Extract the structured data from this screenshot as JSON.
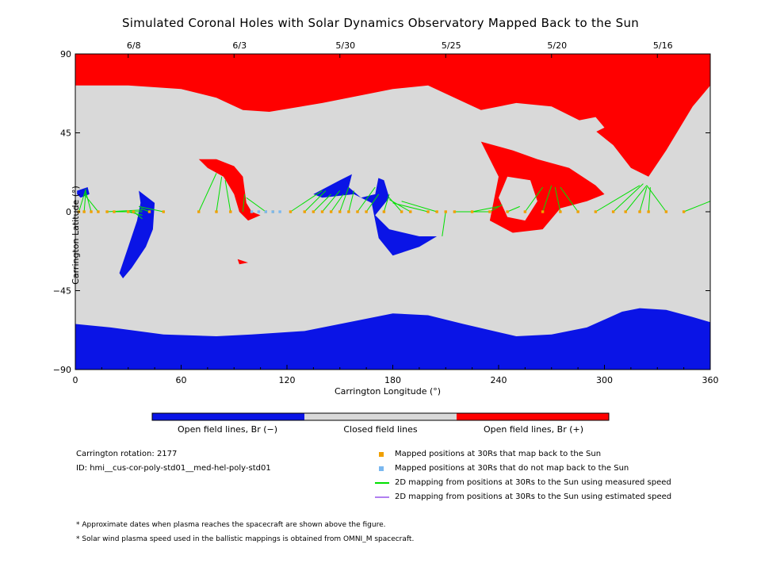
{
  "chart_data": {
    "type": "scatter",
    "title": "Simulated Coronal Holes with Solar Dynamics Observatory Mapped Back to the Sun",
    "xlabel": "Carrington Longitude (°)",
    "ylabel": "Carrington Latitude (°)",
    "xlim": [
      0,
      360
    ],
    "ylim": [
      -90,
      90
    ],
    "xticks": [
      0,
      60,
      120,
      180,
      240,
      300,
      360
    ],
    "yticks": [
      -90,
      -45,
      0,
      45,
      90
    ],
    "xtick_labels": [
      "0",
      "60",
      "120",
      "180",
      "240",
      "300",
      "360"
    ],
    "ytick_labels": [
      "−90",
      "−45",
      "0",
      "45",
      "90"
    ],
    "top_axis": {
      "dates": [
        "6/8",
        "6/3",
        "5/30",
        "5/25",
        "5/20",
        "5/16"
      ],
      "longitudes": [
        30,
        90,
        150,
        210,
        270,
        330
      ]
    },
    "colors": {
      "open_neg": "#0a14e6",
      "closed": "#d9d9d9",
      "open_pos": "#ff0000",
      "mapped": "#f0a000",
      "unmapped": "#7ab8f0",
      "measured": "#00e000",
      "estimated": "#b07ff0"
    },
    "regions": {
      "north_polar_open_pos_boundary": [
        [
          0,
          72
        ],
        [
          30,
          72
        ],
        [
          60,
          70
        ],
        [
          80,
          65
        ],
        [
          95,
          58
        ],
        [
          110,
          57
        ],
        [
          140,
          62
        ],
        [
          180,
          70
        ],
        [
          200,
          72
        ],
        [
          230,
          58
        ],
        [
          250,
          62
        ],
        [
          270,
          60
        ],
        [
          290,
          50
        ],
        [
          305,
          38
        ],
        [
          315,
          25
        ],
        [
          325,
          20
        ],
        [
          335,
          35
        ],
        [
          350,
          60
        ],
        [
          360,
          72
        ]
      ],
      "south_polar_open_neg_boundary": [
        [
          0,
          -64
        ],
        [
          20,
          -66
        ],
        [
          50,
          -70
        ],
        [
          80,
          -71
        ],
        [
          100,
          -70
        ],
        [
          130,
          -68
        ],
        [
          160,
          -62
        ],
        [
          180,
          -58
        ],
        [
          200,
          -59
        ],
        [
          220,
          -64
        ],
        [
          250,
          -71
        ],
        [
          270,
          -70
        ],
        [
          290,
          -66
        ],
        [
          310,
          -57
        ],
        [
          320,
          -55
        ],
        [
          335,
          -56
        ],
        [
          350,
          -60
        ],
        [
          360,
          -63
        ]
      ],
      "holes_neg": [
        [
          [
            1,
            12
          ],
          [
            7,
            14
          ],
          [
            8,
            10
          ],
          [
            3,
            8
          ],
          [
            1,
            10
          ]
        ],
        [
          [
            36,
            12
          ],
          [
            45,
            5
          ],
          [
            44,
            -10
          ],
          [
            40,
            -20
          ],
          [
            32,
            -32
          ],
          [
            27,
            -38
          ],
          [
            25,
            -35
          ],
          [
            30,
            -20
          ],
          [
            35,
            -5
          ],
          [
            37,
            5
          ]
        ],
        [
          [
            135,
            10
          ],
          [
            150,
            18
          ],
          [
            158,
            22
          ],
          [
            165,
            22
          ],
          [
            175,
            18
          ],
          [
            178,
            8
          ],
          [
            170,
            -2
          ],
          [
            178,
            -10
          ],
          [
            195,
            -14
          ],
          [
            205,
            -14
          ],
          [
            195,
            -20
          ],
          [
            180,
            -25
          ],
          [
            172,
            -15
          ],
          [
            168,
            5
          ],
          [
            158,
            10
          ],
          [
            140,
            8
          ]
        ]
      ],
      "holes_pos": [
        [
          [
            70,
            30
          ],
          [
            80,
            30
          ],
          [
            90,
            26
          ],
          [
            95,
            20
          ],
          [
            97,
            5
          ],
          [
            100,
            0
          ],
          [
            105,
            -2
          ],
          [
            98,
            -5
          ],
          [
            93,
            0
          ],
          [
            90,
            10
          ],
          [
            84,
            20
          ],
          [
            75,
            25
          ]
        ],
        [
          [
            230,
            40
          ],
          [
            248,
            35
          ],
          [
            262,
            30
          ],
          [
            280,
            25
          ],
          [
            295,
            15
          ],
          [
            300,
            10
          ],
          [
            290,
            6
          ],
          [
            275,
            2
          ],
          [
            265,
            -10
          ],
          [
            248,
            -12
          ],
          [
            235,
            -5
          ],
          [
            240,
            20
          ]
        ],
        [
          [
            92,
            -27
          ],
          [
            98,
            -29
          ],
          [
            93,
            -30
          ]
        ]
      ],
      "closed_islands": [
        [
          [
            157,
            22
          ],
          [
            165,
            24
          ],
          [
            172,
            20
          ],
          [
            170,
            10
          ],
          [
            162,
            8
          ],
          [
            155,
            14
          ]
        ],
        [
          [
            245,
            20
          ],
          [
            258,
            18
          ],
          [
            262,
            6
          ],
          [
            255,
            -5
          ],
          [
            245,
            -3
          ],
          [
            240,
            8
          ]
        ],
        [
          [
            285,
            52
          ],
          [
            295,
            54
          ],
          [
            300,
            48
          ],
          [
            292,
            44
          ],
          [
            286,
            47
          ]
        ]
      ]
    },
    "mapped_longitudes": [
      2,
      5,
      9,
      13,
      18,
      22,
      30,
      33,
      42,
      50,
      70,
      80,
      88,
      108,
      112,
      122,
      130,
      135,
      140,
      145,
      150,
      155,
      160,
      165,
      175,
      185,
      190,
      200,
      205,
      210,
      215,
      225,
      235,
      245,
      255,
      265,
      275,
      285,
      295,
      305,
      312,
      320,
      325,
      335,
      345
    ],
    "unmapped_longitudes": [
      100,
      104,
      108,
      112,
      116
    ],
    "field_lines": [
      {
        "from": [
          2,
          0
        ],
        "to": [
          6,
          13
        ]
      },
      {
        "from": [
          5,
          0
        ],
        "to": [
          6,
          12
        ]
      },
      {
        "from": [
          9,
          0
        ],
        "to": [
          6,
          11
        ]
      },
      {
        "from": [
          13,
          0
        ],
        "to": [
          5,
          10
        ]
      },
      {
        "from": [
          18,
          0
        ],
        "to": [
          38,
          1
        ]
      },
      {
        "from": [
          22,
          0
        ],
        "to": [
          38,
          0
        ]
      },
      {
        "from": [
          30,
          0
        ],
        "to": [
          38,
          -2
        ]
      },
      {
        "from": [
          33,
          0
        ],
        "to": [
          38,
          -4
        ]
      },
      {
        "from": [
          42,
          0
        ],
        "to": [
          37,
          2
        ]
      },
      {
        "from": [
          50,
          0
        ],
        "to": [
          36,
          3
        ]
      },
      {
        "from": [
          70,
          0
        ],
        "to": [
          80,
          22
        ]
      },
      {
        "from": [
          80,
          0
        ],
        "to": [
          83,
          20
        ]
      },
      {
        "from": [
          88,
          0
        ],
        "to": [
          85,
          18
        ]
      },
      {
        "from": [
          95,
          0
        ],
        "to": [
          96,
          10
        ]
      },
      {
        "from": [
          108,
          0
        ],
        "to": [
          97,
          8
        ]
      },
      {
        "from": [
          122,
          0
        ],
        "to": [
          140,
          12
        ]
      },
      {
        "from": [
          130,
          0
        ],
        "to": [
          142,
          12
        ]
      },
      {
        "from": [
          135,
          0
        ],
        "to": [
          145,
          10
        ]
      },
      {
        "from": [
          140,
          0
        ],
        "to": [
          150,
          12
        ]
      },
      {
        "from": [
          145,
          0
        ],
        "to": [
          152,
          10
        ]
      },
      {
        "from": [
          150,
          0
        ],
        "to": [
          155,
          14
        ]
      },
      {
        "from": [
          155,
          0
        ],
        "to": [
          158,
          12
        ]
      },
      {
        "from": [
          160,
          0
        ],
        "to": [
          170,
          14
        ]
      },
      {
        "from": [
          165,
          0
        ],
        "to": [
          172,
          10
        ]
      },
      {
        "from": [
          175,
          0
        ],
        "to": [
          178,
          10
        ]
      },
      {
        "from": [
          185,
          0
        ],
        "to": [
          178,
          8
        ]
      },
      {
        "from": [
          190,
          0
        ],
        "to": [
          178,
          7
        ]
      },
      {
        "from": [
          200,
          0
        ],
        "to": [
          180,
          5
        ]
      },
      {
        "from": [
          205,
          0
        ],
        "to": [
          185,
          6
        ]
      },
      {
        "from": [
          210,
          0
        ],
        "to": [
          208,
          -14
        ]
      },
      {
        "from": [
          215,
          0
        ],
        "to": [
          235,
          0
        ]
      },
      {
        "from": [
          225,
          0
        ],
        "to": [
          240,
          3
        ]
      },
      {
        "from": [
          235,
          0
        ],
        "to": [
          242,
          4
        ]
      },
      {
        "from": [
          245,
          0
        ],
        "to": [
          252,
          3
        ]
      },
      {
        "from": [
          255,
          0
        ],
        "to": [
          265,
          14
        ]
      },
      {
        "from": [
          265,
          0
        ],
        "to": [
          270,
          15
        ]
      },
      {
        "from": [
          275,
          0
        ],
        "to": [
          272,
          14
        ]
      },
      {
        "from": [
          285,
          0
        ],
        "to": [
          275,
          14
        ]
      },
      {
        "from": [
          295,
          0
        ],
        "to": [
          320,
          15
        ]
      },
      {
        "from": [
          305,
          0
        ],
        "to": [
          322,
          16
        ]
      },
      {
        "from": [
          312,
          0
        ],
        "to": [
          324,
          15
        ]
      },
      {
        "from": [
          320,
          0
        ],
        "to": [
          324,
          14
        ]
      },
      {
        "from": [
          325,
          0
        ],
        "to": [
          326,
          14
        ]
      },
      {
        "from": [
          335,
          0
        ],
        "to": [
          324,
          15
        ]
      },
      {
        "from": [
          345,
          0
        ],
        "to": [
          360,
          6
        ]
      }
    ]
  },
  "colorbar": {
    "labels": [
      "Open field lines, Br (−)",
      "Closed field lines",
      "Open field lines, Br (+)"
    ]
  },
  "info": {
    "rotation": "Carrington rotation: 2177",
    "id": "ID: hmi__cus-cor-poly-std01__med-hel-poly-std01"
  },
  "legend": [
    {
      "kind": "square",
      "color": "#f0a000",
      "label": "Mapped positions at 30Rs that map back to the Sun"
    },
    {
      "kind": "square",
      "color": "#7ab8f0",
      "label": "Mapped positions at 30Rs that do not map back to the Sun"
    },
    {
      "kind": "line",
      "color": "#00e000",
      "label": "2D mapping from positions at 30Rs to the Sun using measured speed"
    },
    {
      "kind": "line",
      "color": "#b07ff0",
      "label": "2D mapping from positions at 30Rs to the Sun using estimated speed"
    }
  ],
  "notes": [
    "* Approximate dates when plasma reaches the spacecraft are shown above the figure.",
    "* Solar wind plasma speed used in the ballistic mappings is obtained from OMNI_M spacecraft."
  ]
}
